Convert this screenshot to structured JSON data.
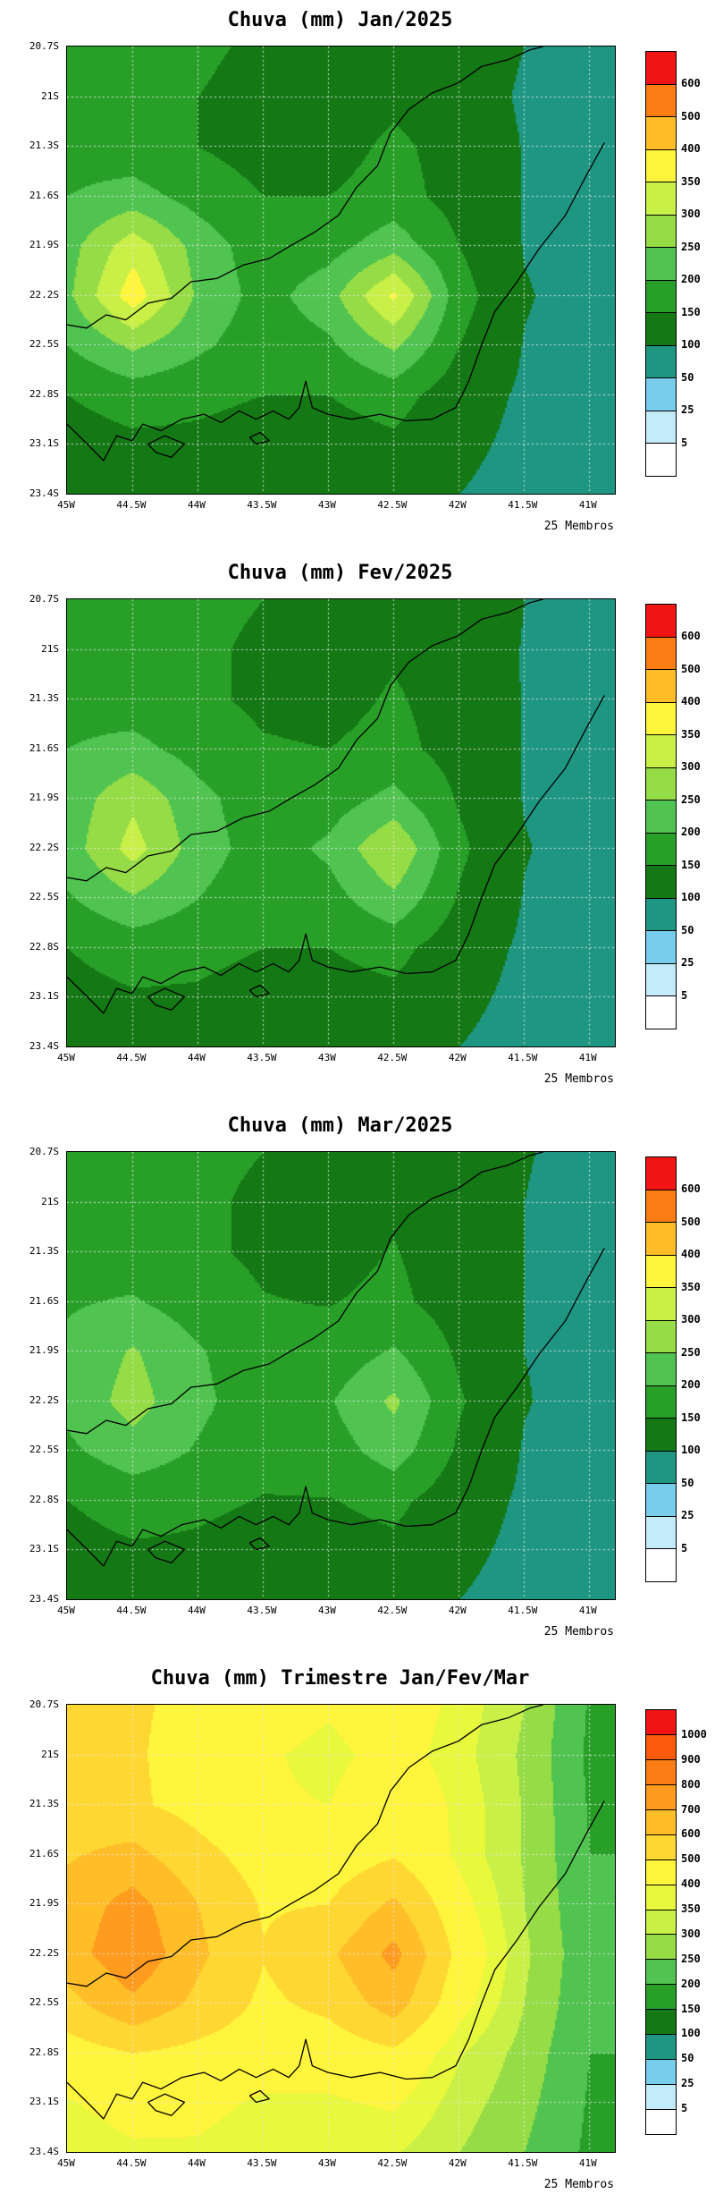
{
  "figure_background": "#ffffff",
  "map_outline": {
    "stroke": "#000000",
    "paths": [
      [
        [
          45.0,
          22.98
        ],
        [
          44.82,
          23.12
        ],
        [
          44.72,
          23.2
        ],
        [
          44.62,
          23.05
        ],
        [
          44.5,
          23.08
        ],
        [
          44.42,
          22.98
        ],
        [
          44.28,
          23.02
        ],
        [
          44.12,
          22.95
        ],
        [
          43.95,
          22.92
        ],
        [
          43.82,
          22.97
        ],
        [
          43.68,
          22.9
        ],
        [
          43.55,
          22.95
        ],
        [
          43.42,
          22.9
        ],
        [
          43.3,
          22.95
        ],
        [
          43.22,
          22.88
        ],
        [
          43.17,
          22.72
        ],
        [
          43.12,
          22.88
        ],
        [
          43.0,
          22.92
        ],
        [
          42.82,
          22.95
        ],
        [
          42.6,
          22.92
        ],
        [
          42.4,
          22.96
        ],
        [
          42.2,
          22.95
        ],
        [
          42.02,
          22.88
        ],
        [
          41.92,
          22.72
        ],
        [
          41.82,
          22.5
        ],
        [
          41.72,
          22.3
        ],
        [
          41.55,
          22.12
        ],
        [
          41.38,
          21.92
        ],
        [
          41.18,
          21.72
        ],
        [
          41.02,
          21.48
        ],
        [
          40.88,
          21.28
        ]
      ],
      [
        [
          45.0,
          22.38
        ],
        [
          44.85,
          22.4
        ],
        [
          44.7,
          22.32
        ],
        [
          44.55,
          22.35
        ],
        [
          44.38,
          22.25
        ],
        [
          44.2,
          22.22
        ],
        [
          44.05,
          22.12
        ],
        [
          43.85,
          22.1
        ],
        [
          43.65,
          22.02
        ],
        [
          43.45,
          21.98
        ],
        [
          43.28,
          21.9
        ],
        [
          43.1,
          21.82
        ],
        [
          42.92,
          21.72
        ],
        [
          42.78,
          21.55
        ],
        [
          42.62,
          21.42
        ],
        [
          42.52,
          21.22
        ],
        [
          42.38,
          21.08
        ],
        [
          42.2,
          20.98
        ],
        [
          42.0,
          20.92
        ],
        [
          41.82,
          20.82
        ],
        [
          41.62,
          20.78
        ],
        [
          41.45,
          20.72
        ],
        [
          41.35,
          20.7
        ]
      ],
      [
        [
          44.38,
          23.1
        ],
        [
          44.25,
          23.05
        ],
        [
          44.1,
          23.1
        ],
        [
          44.2,
          23.18
        ],
        [
          44.32,
          23.15
        ],
        [
          44.38,
          23.1
        ]
      ],
      [
        [
          43.6,
          23.06
        ],
        [
          43.52,
          23.03
        ],
        [
          43.45,
          23.08
        ],
        [
          43.55,
          23.1
        ],
        [
          43.6,
          23.06
        ]
      ]
    ]
  },
  "chart_data": [
    {
      "type": "heatmap",
      "subtype": "filled-contour-precipitation-map",
      "title": "Chuva (mm) Jan/2025",
      "annotation": "25 Membros",
      "x_tick_labels": [
        "45W",
        "44.5W",
        "44W",
        "43.5W",
        "43W",
        "42.5W",
        "42W",
        "41.5W",
        "41W"
      ],
      "y_tick_labels": [
        "20.7S",
        "21S",
        "21.3S",
        "21.6S",
        "21.9S",
        "22.2S",
        "22.5S",
        "22.8S",
        "23.1S",
        "23.4S"
      ],
      "grid_lons_w": [
        45,
        44.5,
        44,
        43.5,
        43,
        42.5,
        42,
        41.5,
        41
      ],
      "grid_lats_s": [
        20.7,
        21.0,
        21.3,
        21.6,
        21.9,
        22.2,
        22.5,
        22.8,
        23.1,
        23.4
      ],
      "levels": [
        5,
        25,
        50,
        100,
        150,
        200,
        250,
        300,
        350,
        400,
        500,
        600
      ],
      "palette": [
        "#ffffff",
        "#c3ebfa",
        "#78cdeb",
        "#1e9682",
        "#147814",
        "#28a028",
        "#50c350",
        "#96dc46",
        "#c8f046",
        "#fff53c",
        "#ffbe28",
        "#fa7d14",
        "#f01414"
      ],
      "colorbar_labels_top_to_bottom": [
        "600",
        "500",
        "400",
        "350",
        "300",
        "250",
        "200",
        "150",
        "100",
        "50",
        "25",
        "5"
      ],
      "values_mm": [
        [
          170,
          170,
          160,
          140,
          130,
          150,
          120,
          100,
          88
        ],
        [
          180,
          170,
          150,
          130,
          120,
          140,
          120,
          95,
          85
        ],
        [
          180,
          170,
          150,
          130,
          130,
          160,
          130,
          98,
          85
        ],
        [
          200,
          220,
          180,
          150,
          150,
          170,
          130,
          98,
          85
        ],
        [
          230,
          330,
          230,
          170,
          180,
          230,
          150,
          98,
          85
        ],
        [
          240,
          380,
          240,
          180,
          230,
          360,
          170,
          103,
          85
        ],
        [
          200,
          260,
          210,
          170,
          190,
          260,
          150,
          98,
          84
        ],
        [
          150,
          170,
          160,
          150,
          150,
          170,
          120,
          94,
          80
        ],
        [
          130,
          140,
          140,
          130,
          130,
          140,
          110,
          90,
          78
        ],
        [
          120,
          130,
          130,
          120,
          120,
          120,
          100,
          85,
          75
        ]
      ]
    },
    {
      "type": "heatmap",
      "subtype": "filled-contour-precipitation-map",
      "title": "Chuva (mm) Fev/2025",
      "annotation": "25 Membros",
      "x_tick_labels": [
        "45W",
        "44.5W",
        "44W",
        "43.5W",
        "43W",
        "42.5W",
        "42W",
        "41.5W",
        "41W"
      ],
      "y_tick_labels": [
        "20.7S",
        "21S",
        "21.3S",
        "21.6S",
        "21.9S",
        "22.2S",
        "22.5S",
        "22.8S",
        "23.1S",
        "23.4S"
      ],
      "grid_lons_w": [
        45,
        44.5,
        44,
        43.5,
        43,
        42.5,
        42,
        41.5,
        41
      ],
      "grid_lats_s": [
        20.7,
        21.0,
        21.3,
        21.6,
        21.9,
        22.2,
        22.5,
        22.8,
        23.1,
        23.4
      ],
      "levels": [
        5,
        25,
        50,
        100,
        150,
        200,
        250,
        300,
        350,
        400,
        500,
        600
      ],
      "palette": [
        "#ffffff",
        "#c3ebfa",
        "#78cdeb",
        "#1e9682",
        "#147814",
        "#28a028",
        "#50c350",
        "#96dc46",
        "#c8f046",
        "#fff53c",
        "#ffbe28",
        "#fa7d14",
        "#f01414"
      ],
      "colorbar_labels_top_to_bottom": [
        "600",
        "500",
        "400",
        "350",
        "300",
        "250",
        "200",
        "150",
        "100",
        "50",
        "25",
        "5"
      ],
      "values_mm": [
        [
          180,
          175,
          165,
          150,
          140,
          150,
          130,
          100,
          88
        ],
        [
          185,
          175,
          160,
          140,
          130,
          145,
          125,
          98,
          86
        ],
        [
          185,
          175,
          160,
          140,
          135,
          155,
          130,
          98,
          86
        ],
        [
          200,
          215,
          180,
          155,
          150,
          165,
          130,
          98,
          86
        ],
        [
          220,
          290,
          215,
          170,
          175,
          215,
          145,
          98,
          86
        ],
        [
          225,
          320,
          225,
          175,
          210,
          300,
          160,
          102,
          86
        ],
        [
          195,
          245,
          200,
          165,
          180,
          240,
          145,
          98,
          84
        ],
        [
          150,
          170,
          160,
          150,
          150,
          165,
          120,
          94,
          82
        ],
        [
          135,
          145,
          145,
          135,
          135,
          140,
          110,
          90,
          80
        ],
        [
          125,
          135,
          135,
          125,
          120,
          120,
          100,
          85,
          78
        ]
      ]
    },
    {
      "type": "heatmap",
      "subtype": "filled-contour-precipitation-map",
      "title": "Chuva (mm) Mar/2025",
      "annotation": "25 Membros",
      "x_tick_labels": [
        "45W",
        "44.5W",
        "44W",
        "43.5W",
        "43W",
        "42.5W",
        "42W",
        "41.5W",
        "41W"
      ],
      "y_tick_labels": [
        "20.7S",
        "21S",
        "21.3S",
        "21.6S",
        "21.9S",
        "22.2S",
        "22.5S",
        "22.8S",
        "23.1S",
        "23.4S"
      ],
      "grid_lons_w": [
        45,
        44.5,
        44,
        43.5,
        43,
        42.5,
        42,
        41.5,
        41
      ],
      "grid_lats_s": [
        20.7,
        21.0,
        21.3,
        21.6,
        21.9,
        22.2,
        22.5,
        22.8,
        23.1,
        23.4
      ],
      "levels": [
        5,
        25,
        50,
        100,
        150,
        200,
        250,
        300,
        350,
        400,
        500,
        600
      ],
      "palette": [
        "#ffffff",
        "#c3ebfa",
        "#78cdeb",
        "#1e9682",
        "#147814",
        "#28a028",
        "#50c350",
        "#96dc46",
        "#c8f046",
        "#fff53c",
        "#ffbe28",
        "#fa7d14",
        "#f01414"
      ],
      "colorbar_labels_top_to_bottom": [
        "600",
        "500",
        "400",
        "350",
        "300",
        "250",
        "200",
        "150",
        "100",
        "50",
        "25",
        "5"
      ],
      "values_mm": [
        [
          175,
          170,
          160,
          150,
          140,
          150,
          130,
          102,
          90
        ],
        [
          180,
          170,
          158,
          142,
          132,
          145,
          125,
          100,
          88
        ],
        [
          180,
          172,
          158,
          142,
          136,
          152,
          128,
          100,
          88
        ],
        [
          195,
          205,
          175,
          152,
          148,
          160,
          128,
          100,
          88
        ],
        [
          210,
          255,
          205,
          165,
          168,
          205,
          142,
          100,
          87
        ],
        [
          215,
          270,
          212,
          170,
          195,
          260,
          155,
          102,
          87
        ],
        [
          190,
          230,
          195,
          162,
          175,
          225,
          142,
          97,
          85
        ],
        [
          150,
          168,
          158,
          148,
          148,
          162,
          120,
          94,
          82
        ],
        [
          135,
          145,
          143,
          133,
          133,
          140,
          110,
          90,
          80
        ],
        [
          125,
          133,
          133,
          123,
          120,
          120,
          100,
          85,
          78
        ]
      ]
    },
    {
      "type": "heatmap",
      "subtype": "filled-contour-precipitation-map",
      "title": "Chuva (mm) Trimestre Jan/Fev/Mar",
      "annotation": "25 Membros",
      "x_tick_labels": [
        "45W",
        "44.5W",
        "44W",
        "43.5W",
        "43W",
        "42.5W",
        "42W",
        "41.5W",
        "41W"
      ],
      "y_tick_labels": [
        "20.7S",
        "21S",
        "21.3S",
        "21.6S",
        "21.9S",
        "22.2S",
        "22.5S",
        "22.8S",
        "23.1S",
        "23.4S"
      ],
      "grid_lons_w": [
        45,
        44.5,
        44,
        43.5,
        43,
        42.5,
        42,
        41.5,
        41
      ],
      "grid_lats_s": [
        20.7,
        21.0,
        21.3,
        21.6,
        21.9,
        22.2,
        22.5,
        22.8,
        23.1,
        23.4
      ],
      "levels": [
        5,
        25,
        50,
        100,
        150,
        200,
        250,
        300,
        350,
        400,
        500,
        600,
        700,
        800,
        900,
        1000
      ],
      "palette": [
        "#ffffff",
        "#c3ebfa",
        "#78cdeb",
        "#1e9682",
        "#147814",
        "#28a028",
        "#50c350",
        "#96dc46",
        "#c8f046",
        "#e8f83c",
        "#fff53c",
        "#ffd732",
        "#ffbe28",
        "#ff9b1e",
        "#fa7d14",
        "#fa5a0a",
        "#f01414"
      ],
      "colorbar_labels_top_to_bottom": [
        "1000",
        "900",
        "800",
        "700",
        "600",
        "500",
        "400",
        "350",
        "300",
        "250",
        "200",
        "150",
        "100",
        "50",
        "25",
        "5"
      ],
      "values_mm": [
        [
          520,
          510,
          480,
          440,
          410,
          450,
          380,
          300,
          195
        ],
        [
          540,
          510,
          465,
          410,
          380,
          430,
          370,
          290,
          190
        ],
        [
          545,
          515,
          465,
          410,
          400,
          465,
          385,
          295,
          195
        ],
        [
          590,
          630,
          530,
          455,
          445,
          490,
          385,
          295,
          200
        ],
        [
          640,
          740,
          600,
          490,
          500,
          620,
          430,
          300,
          205
        ],
        [
          655,
          780,
          620,
          505,
          580,
          730,
          470,
          310,
          210
        ],
        [
          570,
          680,
          575,
          480,
          525,
          650,
          430,
          300,
          205
        ],
        [
          450,
          500,
          470,
          440,
          440,
          480,
          355,
          280,
          200
        ],
        [
          395,
          425,
          420,
          390,
          390,
          410,
          325,
          265,
          195
        ],
        [
          365,
          390,
          390,
          360,
          355,
          355,
          300,
          250,
          190
        ]
      ]
    }
  ]
}
